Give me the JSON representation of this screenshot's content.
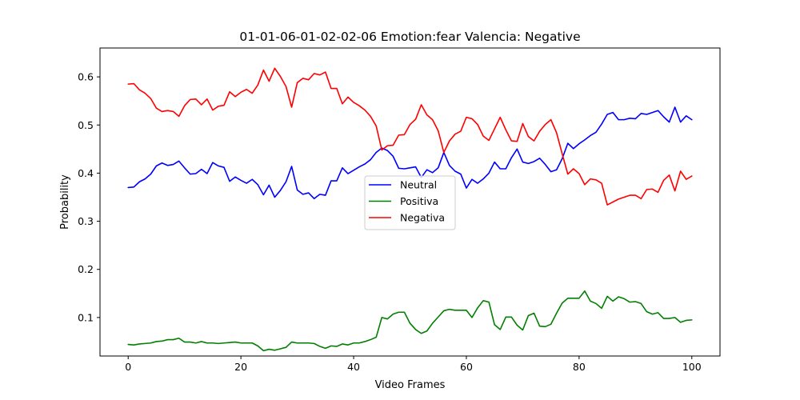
{
  "chart_data": {
    "type": "line",
    "title": "01-01-06-01-02-02-06 Emotion:fear Valencia: Negative",
    "xlabel": "Video Frames",
    "ylabel": "Probability",
    "xlim": [
      -5,
      105
    ],
    "ylim": [
      0.02,
      0.66
    ],
    "xticks": [
      0,
      20,
      40,
      60,
      80,
      100
    ],
    "xtick_labels": [
      "0",
      "20",
      "40",
      "60",
      "80",
      "100"
    ],
    "yticks": [
      0.1,
      0.2,
      0.3,
      0.4,
      0.5,
      0.6
    ],
    "ytick_labels": [
      "0.1",
      "0.2",
      "0.3",
      "0.4",
      "0.5",
      "0.6"
    ],
    "grid": false,
    "legend_position": "center",
    "x": [
      0,
      1,
      2,
      3,
      4,
      5,
      6,
      7,
      8,
      9,
      10,
      11,
      12,
      13,
      14,
      15,
      16,
      17,
      18,
      19,
      20,
      21,
      22,
      23,
      24,
      25,
      26,
      27,
      28,
      29,
      30,
      31,
      32,
      33,
      34,
      35,
      36,
      37,
      38,
      39,
      40,
      41,
      42,
      43,
      44,
      45,
      46,
      47,
      48,
      49,
      50,
      51,
      52,
      53,
      54,
      55,
      56,
      57,
      58,
      59,
      60,
      61,
      62,
      63,
      64,
      65,
      66,
      67,
      68,
      69,
      70,
      71,
      72,
      73,
      74,
      75,
      76,
      77,
      78,
      79,
      80,
      81,
      82,
      83,
      84,
      85,
      86,
      87,
      88,
      89,
      90,
      91,
      92,
      93,
      94,
      95,
      96,
      97,
      98,
      99,
      100
    ],
    "series": [
      {
        "name": "Neutral",
        "color": "#0000ff",
        "values": [
          0.37,
          0.371,
          0.382,
          0.388,
          0.398,
          0.415,
          0.421,
          0.416,
          0.418,
          0.425,
          0.411,
          0.398,
          0.399,
          0.408,
          0.399,
          0.422,
          0.415,
          0.412,
          0.383,
          0.392,
          0.385,
          0.379,
          0.387,
          0.376,
          0.355,
          0.375,
          0.35,
          0.364,
          0.382,
          0.414,
          0.365,
          0.356,
          0.359,
          0.347,
          0.356,
          0.354,
          0.384,
          0.384,
          0.411,
          0.399,
          0.406,
          0.413,
          0.419,
          0.428,
          0.443,
          0.452,
          0.447,
          0.435,
          0.41,
          0.409,
          0.411,
          0.413,
          0.391,
          0.407,
          0.401,
          0.411,
          0.443,
          0.416,
          0.404,
          0.398,
          0.369,
          0.387,
          0.379,
          0.388,
          0.4,
          0.423,
          0.409,
          0.409,
          0.432,
          0.45,
          0.423,
          0.42,
          0.424,
          0.431,
          0.418,
          0.403,
          0.407,
          0.43,
          0.462,
          0.451,
          0.461,
          0.469,
          0.478,
          0.485,
          0.502,
          0.522,
          0.526,
          0.511,
          0.511,
          0.514,
          0.513,
          0.524,
          0.522,
          0.526,
          0.53,
          0.517,
          0.506,
          0.537,
          0.506,
          0.519,
          0.511
        ]
      },
      {
        "name": "Positiva",
        "color": "#008000",
        "values": [
          0.044,
          0.043,
          0.045,
          0.046,
          0.047,
          0.05,
          0.051,
          0.054,
          0.054,
          0.057,
          0.049,
          0.049,
          0.047,
          0.05,
          0.047,
          0.047,
          0.046,
          0.047,
          0.048,
          0.049,
          0.047,
          0.047,
          0.047,
          0.041,
          0.031,
          0.034,
          0.032,
          0.035,
          0.038,
          0.049,
          0.047,
          0.047,
          0.047,
          0.046,
          0.04,
          0.036,
          0.041,
          0.04,
          0.045,
          0.043,
          0.047,
          0.047,
          0.05,
          0.054,
          0.059,
          0.1,
          0.097,
          0.107,
          0.111,
          0.111,
          0.088,
          0.075,
          0.067,
          0.072,
          0.088,
          0.101,
          0.114,
          0.117,
          0.115,
          0.115,
          0.115,
          0.1,
          0.12,
          0.135,
          0.132,
          0.085,
          0.075,
          0.101,
          0.101,
          0.084,
          0.074,
          0.104,
          0.109,
          0.082,
          0.081,
          0.086,
          0.109,
          0.13,
          0.14,
          0.14,
          0.14,
          0.155,
          0.134,
          0.129,
          0.119,
          0.144,
          0.134,
          0.143,
          0.139,
          0.132,
          0.133,
          0.129,
          0.112,
          0.107,
          0.11,
          0.098,
          0.098,
          0.1,
          0.09,
          0.094,
          0.095
        ]
      },
      {
        "name": "Negativa",
        "color": "#ff0000",
        "values": [
          0.585,
          0.586,
          0.573,
          0.566,
          0.555,
          0.535,
          0.528,
          0.53,
          0.528,
          0.518,
          0.54,
          0.553,
          0.554,
          0.542,
          0.554,
          0.531,
          0.539,
          0.541,
          0.569,
          0.559,
          0.568,
          0.574,
          0.566,
          0.583,
          0.614,
          0.591,
          0.618,
          0.601,
          0.58,
          0.537,
          0.588,
          0.597,
          0.594,
          0.607,
          0.604,
          0.61,
          0.576,
          0.576,
          0.544,
          0.558,
          0.547,
          0.54,
          0.531,
          0.518,
          0.498,
          0.448,
          0.457,
          0.458,
          0.479,
          0.48,
          0.501,
          0.512,
          0.542,
          0.521,
          0.511,
          0.488,
          0.443,
          0.467,
          0.481,
          0.487,
          0.516,
          0.513,
          0.501,
          0.477,
          0.468,
          0.492,
          0.516,
          0.49,
          0.467,
          0.466,
          0.503,
          0.476,
          0.467,
          0.487,
          0.501,
          0.511,
          0.484,
          0.44,
          0.398,
          0.409,
          0.399,
          0.376,
          0.388,
          0.386,
          0.379,
          0.334,
          0.34,
          0.346,
          0.35,
          0.354,
          0.354,
          0.347,
          0.366,
          0.367,
          0.36,
          0.385,
          0.396,
          0.363,
          0.404,
          0.387,
          0.394
        ]
      }
    ]
  }
}
